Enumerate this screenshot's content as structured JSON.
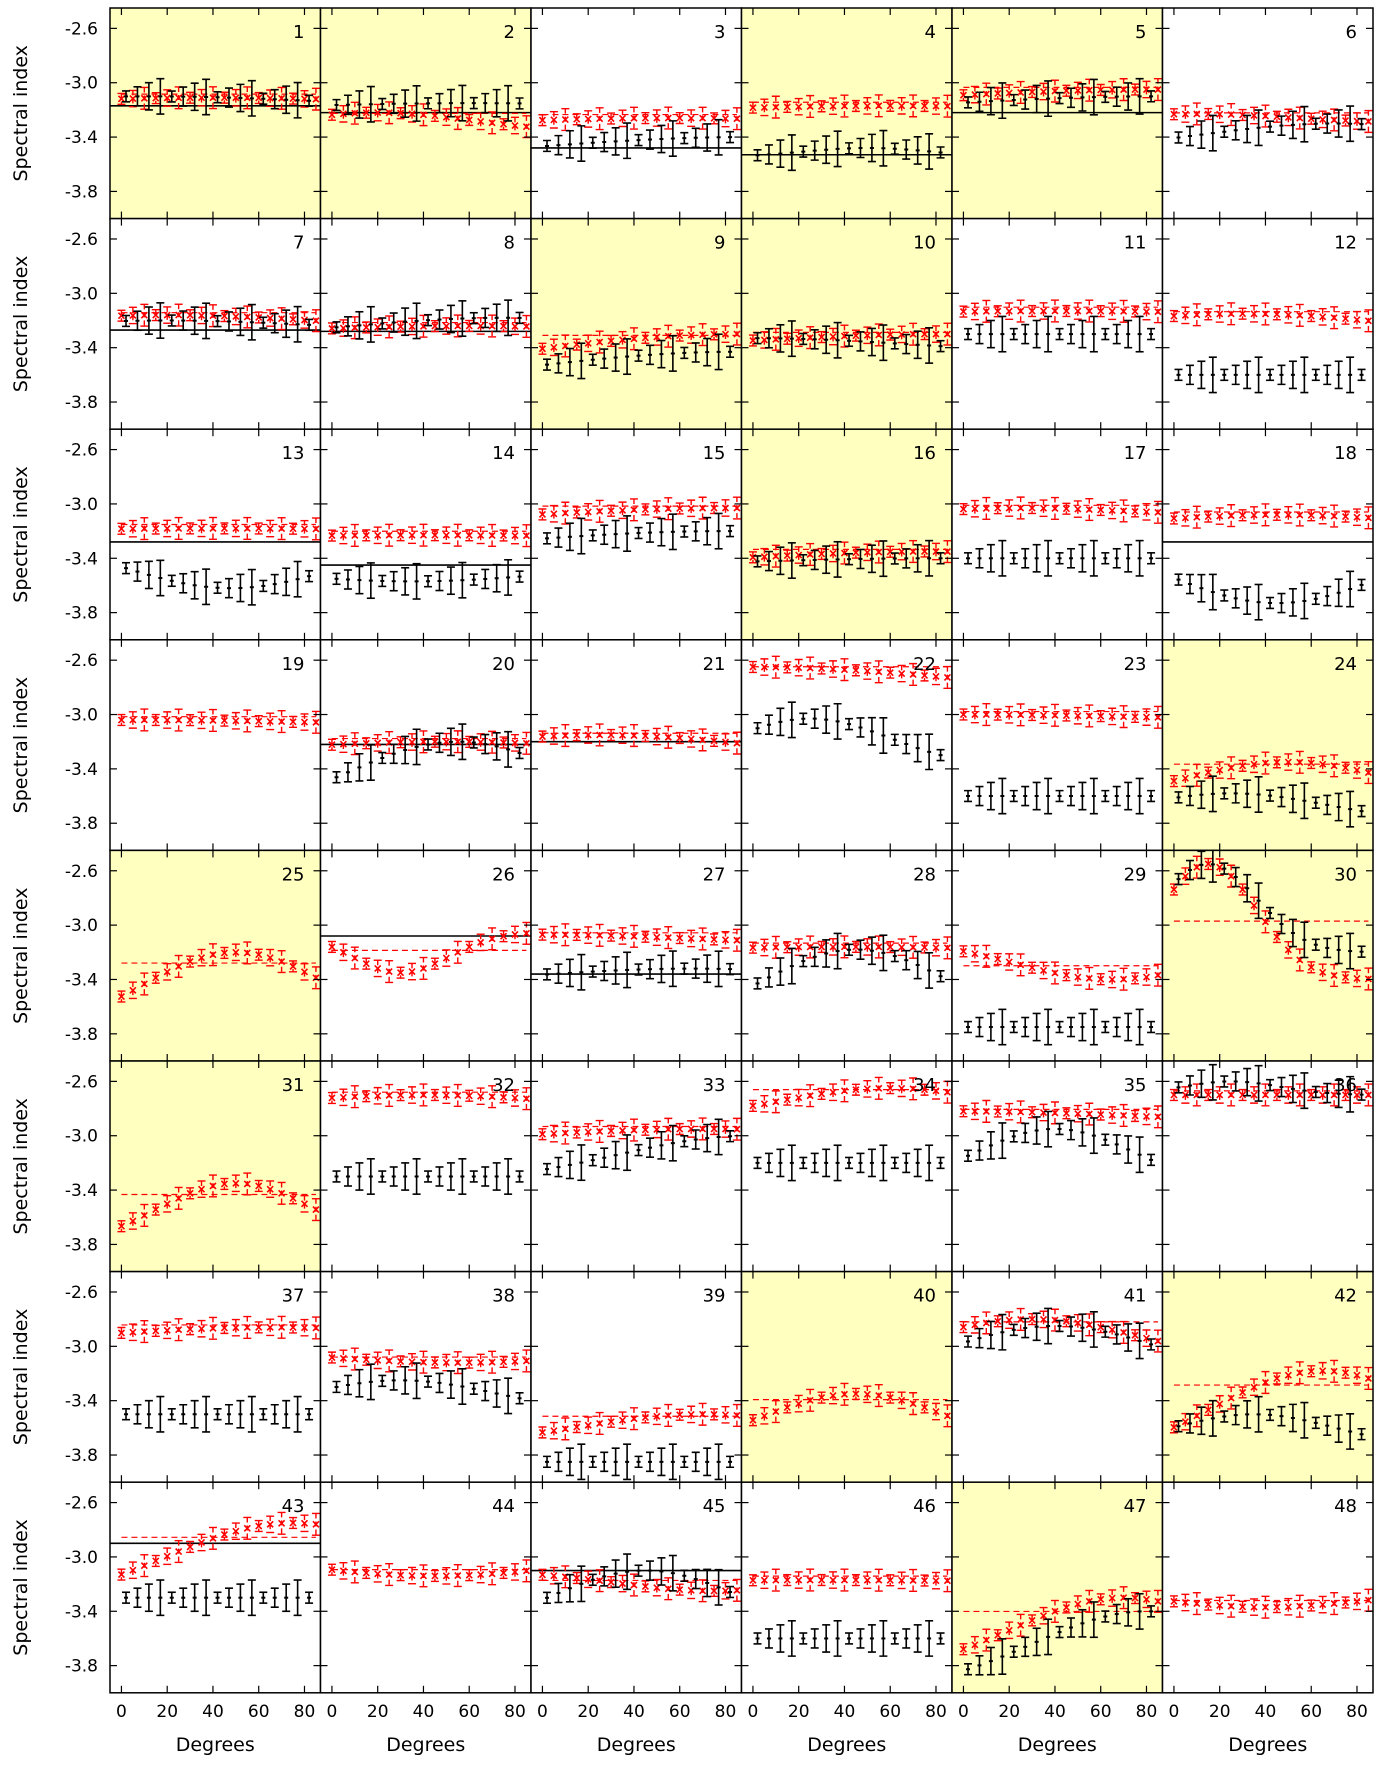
{
  "chart_data": {
    "type": "grid of error-bar line charts",
    "ylabel": "Spectral index",
    "xlabel": "Degrees",
    "xlim": [
      -5,
      87
    ],
    "ylim": [
      -4.0,
      -2.45
    ],
    "x_ticks": [
      0,
      20,
      40,
      60,
      80
    ],
    "x_tick_labels": [
      "0",
      "20",
      "40",
      "60",
      "80"
    ],
    "y_ticks": [
      -2.6,
      -3.0,
      -3.4,
      -3.8
    ],
    "y_tick_labels": [
      "-2.6",
      "-3.0",
      "-3.4",
      "-3.8"
    ],
    "grid": false,
    "colors": {
      "data_series": "#000000",
      "model_series": "#ff0000",
      "highlight_background": "#ffffc0"
    },
    "panels": [
      {
        "label": "1",
        "highlight": true,
        "red": {
          "y0": -3.22,
          "amp": 0.11,
          "c": 40,
          "w": 140
        },
        "black": {
          "y0": -3.24,
          "amp": 0.14,
          "c": 10,
          "w": 140
        },
        "flat": -3.17
      },
      {
        "label": "2",
        "highlight": true,
        "red": {
          "y0": -3.37,
          "amp": 0.15,
          "c": 20,
          "w": 60
        },
        "black": {
          "y0": -3.2,
          "amp": 0.05,
          "c": 60,
          "w": 100
        },
        "flat": -3.22
      },
      {
        "label": "3",
        "red": {
          "y0": -3.37,
          "amp": 0.11,
          "c": 55,
          "w": 140
        },
        "black": {
          "y0": -3.6,
          "amp": 0.2,
          "c": 90,
          "w": 140
        },
        "flat": -3.48
      },
      {
        "label": "4",
        "highlight": true,
        "red": {
          "y0": -3.25,
          "amp": 0.08,
          "c": 60,
          "w": 140
        },
        "black": {
          "y0": -3.55,
          "amp": 0.07,
          "c": 50,
          "w": 40
        },
        "flat": -3.53
      },
      {
        "label": "5",
        "highlight": true,
        "red": {
          "y0": -3.2,
          "amp": 0.15,
          "c": 80,
          "w": 140
        },
        "black": {
          "y0": -3.25,
          "amp": 0.15,
          "c": 85,
          "w": 140
        },
        "flat": -3.22
      },
      {
        "label": "6",
        "red": {
          "y0": -3.3,
          "amp": 0.07,
          "c": 10,
          "w": 60
        },
        "black": {
          "y0": -3.5,
          "amp": 0.2,
          "c": 70,
          "w": 80
        }
      },
      {
        "label": "7",
        "red": {
          "y0": -3.28,
          "amp": 0.12,
          "c": 20,
          "w": 100
        },
        "black": {
          "y0": -3.3,
          "amp": 0.1,
          "c": 20,
          "w": 100
        },
        "flat": -3.27
      },
      {
        "label": "8",
        "red": {
          "y0": -3.3,
          "amp": 0.06,
          "c": 60,
          "w": 100
        },
        "black": {
          "y0": -3.35,
          "amp": 0.17,
          "c": 75,
          "w": 100
        },
        "flat": -3.28
      },
      {
        "label": "9",
        "highlight": true,
        "red": {
          "y0": -3.65,
          "amp": 0.35,
          "c": 85,
          "w": 140
        },
        "black": {
          "y0": -3.75,
          "amp": 0.32,
          "c": 85,
          "w": 140
        }
      },
      {
        "label": "10",
        "highlight": true,
        "red": {
          "y0": -3.4,
          "amp": 0.1,
          "c": 80,
          "w": 100
        },
        "black": {
          "y0": -3.45,
          "amp": 0.12,
          "c": 0,
          "w": 100
        }
      },
      {
        "label": "11",
        "red": {
          "y0": -3.16,
          "amp": 0.03,
          "c": 40,
          "w": 100
        },
        "black": {
          "y0": -3.3,
          "amp": 0.0,
          "c": 40,
          "w": 100
        }
      },
      {
        "label": "12",
        "red": {
          "y0": -3.35,
          "amp": 0.2,
          "c": 30,
          "w": 100
        },
        "black": {
          "y0": -3.6,
          "amp": 0.0,
          "c": 40,
          "w": 100
        }
      },
      {
        "label": "13",
        "red": {
          "y0": -3.2,
          "amp": 0.02,
          "c": 40,
          "w": 100
        },
        "black": {
          "y0": -3.2,
          "amp": -0.42,
          "c": 48,
          "w": 70
        },
        "flat": -3.28
      },
      {
        "label": "14",
        "red": {
          "y0": -3.25,
          "amp": 0.02,
          "c": 40,
          "w": 100
        },
        "black": {
          "y0": -3.45,
          "amp": -0.12,
          "c": 35,
          "w": 80
        },
        "flat": -3.45
      },
      {
        "label": "15",
        "red": {
          "y0": -3.2,
          "amp": 0.17,
          "c": 80,
          "w": 140
        },
        "black": {
          "y0": -3.4,
          "amp": 0.2,
          "c": 80,
          "w": 140
        }
      },
      {
        "label": "16",
        "highlight": true,
        "red": {
          "y0": -3.45,
          "amp": 0.1,
          "c": 75,
          "w": 100
        },
        "black": {
          "y0": -3.45,
          "amp": 0.05,
          "c": 80,
          "w": 100
        }
      },
      {
        "label": "17",
        "red": {
          "y0": -3.08,
          "amp": 0.05,
          "c": 25,
          "w": 60
        },
        "black": {
          "y0": -3.4,
          "amp": 0.0,
          "c": 25,
          "w": 60
        }
      },
      {
        "label": "18",
        "red": {
          "y0": -3.18,
          "amp": 0.1,
          "c": 45,
          "w": 80
        },
        "black": {
          "y0": -3.18,
          "amp": -0.55,
          "c": 45,
          "w": 70
        },
        "flat": -3.28
      },
      {
        "label": "19",
        "red": {
          "y0": -3.08,
          "amp": 0.04,
          "c": 10,
          "w": 100
        }
      },
      {
        "label": "20",
        "red": {
          "y0": -3.3,
          "amp": 0.1,
          "c": 50,
          "w": 100
        },
        "black": {
          "y0": -3.8,
          "amp": 0.6,
          "c": 55,
          "w": 70
        },
        "flat": -3.22
      },
      {
        "label": "21",
        "red": {
          "y0": -3.35,
          "amp": 0.2,
          "c": 25,
          "w": 100
        },
        "flat": -3.2
      },
      {
        "label": "22",
        "red": {
          "y0": -2.9,
          "amp": 0.25,
          "c": 0,
          "w": 140
        },
        "black": {
          "y0": -3.4,
          "amp": 0.37,
          "c": 25,
          "w": 50
        }
      },
      {
        "label": "23",
        "red": {
          "y0": -3.04,
          "amp": 0.04,
          "c": 0,
          "w": 100
        },
        "black": {
          "y0": -3.6,
          "amp": 0.0,
          "c": 30,
          "w": 60
        }
      },
      {
        "label": "24",
        "highlight": true,
        "red": {
          "y0": -3.7,
          "amp": 0.35,
          "c": 50,
          "w": 70
        },
        "black": {
          "y0": -3.8,
          "amp": 0.22,
          "c": 25,
          "w": 60
        }
      },
      {
        "label": "25",
        "highlight": true,
        "red": {
          "y0": -3.85,
          "amp": 0.65,
          "c": 50,
          "w": 60
        }
      },
      {
        "label": "26",
        "red": {
          "y0": -3.05,
          "amp": -0.3,
          "c": 30,
          "w": 30
        },
        "flat": -3.08
      },
      {
        "label": "27",
        "red": {
          "y0": -3.14,
          "amp": 0.07,
          "c": 0,
          "w": 90
        },
        "black": {
          "y0": -3.45,
          "amp": 0.13,
          "c": 65,
          "w": 100
        },
        "flat": -3.36
      },
      {
        "label": "28",
        "red": {
          "y0": -3.2,
          "amp": 0.04,
          "c": 40,
          "w": 100
        },
        "black": {
          "y0": -3.8,
          "amp": 0.62,
          "c": 45,
          "w": 60
        }
      },
      {
        "label": "29",
        "red": {
          "y0": -3.1,
          "amp": -0.3,
          "c": 65,
          "w": 60
        },
        "black": {
          "y0": -3.75,
          "amp": 0.0,
          "c": 40,
          "w": 100
        }
      },
      {
        "label": "30",
        "highlight": true,
        "red": {
          "y0": -3.4,
          "amp": 0.85,
          "c": 15,
          "w": 30
        },
        "black": {
          "y0": -3.2,
          "amp": 0.65,
          "c": 15,
          "w": 30
        }
      },
      {
        "label": "31",
        "highlight": true,
        "red": {
          "y0": -3.85,
          "amp": 0.5,
          "c": 50,
          "w": 50
        }
      },
      {
        "label": "32",
        "red": {
          "y0": -2.85,
          "amp": 0.15,
          "c": 40,
          "w": 100
        },
        "black": {
          "y0": -3.3,
          "amp": 0.0,
          "c": 40,
          "w": 100
        }
      },
      {
        "label": "33",
        "red": {
          "y0": -3.05,
          "amp": 0.1,
          "c": 70,
          "w": 100
        },
        "black": {
          "y0": -3.35,
          "amp": 0.35,
          "c": 90,
          "w": 80
        }
      },
      {
        "label": "34",
        "red": {
          "y0": -2.9,
          "amp": 0.25,
          "c": 60,
          "w": 70
        },
        "black": {
          "y0": -3.2,
          "amp": 0.0,
          "c": 40,
          "w": 100
        }
      },
      {
        "label": "35",
        "red": {
          "y0": -2.9,
          "amp": 0.08,
          "c": 0,
          "w": 100
        },
        "black": {
          "y0": -3.4,
          "amp": 0.45,
          "c": 40,
          "w": 50
        }
      },
      {
        "label": "36",
        "red": {
          "y0": -2.7,
          "amp": 0.0,
          "c": 30,
          "w": 100
        },
        "black": {
          "y0": -2.7,
          "amp": 0.1,
          "c": 25,
          "w": 30
        }
      },
      {
        "label": "37",
        "red": {
          "y0": -2.98,
          "amp": 0.12,
          "c": 65,
          "w": 100
        },
        "black": {
          "y0": -3.5,
          "amp": 0.0,
          "c": 40,
          "w": 100
        }
      },
      {
        "label": "38",
        "red": {
          "y0": -3.0,
          "amp": -0.12,
          "c": 55,
          "w": 90
        },
        "black": {
          "y0": -3.5,
          "amp": 0.25,
          "c": 30,
          "w": 60
        }
      },
      {
        "label": "39",
        "red": {
          "y0": -3.75,
          "amp": 0.25,
          "c": 70,
          "w": 80
        },
        "black": {
          "y0": -3.85,
          "amp": 0.0,
          "c": 65,
          "w": 100
        }
      },
      {
        "label": "40",
        "highlight": true,
        "red": {
          "y0": -3.8,
          "amp": 0.45,
          "c": 45,
          "w": 60
        }
      },
      {
        "label": "41",
        "red": {
          "y0": -3.15,
          "amp": 0.35,
          "c": 30,
          "w": 70
        },
        "black": {
          "y0": -3.3,
          "amp": 0.45,
          "c": 40,
          "w": 70
        }
      },
      {
        "label": "42",
        "highlight": true,
        "red": {
          "y0": -3.9,
          "amp": 0.72,
          "c": 65,
          "w": 70
        },
        "black": {
          "y0": -3.75,
          "amp": 0.25,
          "c": 35,
          "w": 50
        }
      },
      {
        "label": "43",
        "red": {
          "y0": -3.4,
          "amp": 0.65,
          "c": 75,
          "w": 80
        },
        "black": {
          "y0": -3.3,
          "amp": 0.0,
          "c": 40,
          "w": 100
        },
        "flat": -2.9
      },
      {
        "label": "44",
        "red": {
          "y0": -2.97,
          "amp": -0.17,
          "c": 45,
          "w": 80
        }
      },
      {
        "label": "45",
        "red": {
          "y0": -3.1,
          "amp": -0.15,
          "c": 75,
          "w": 60
        },
        "black": {
          "y0": -3.6,
          "amp": 0.5,
          "c": 45,
          "w": 60
        },
        "flat": -3.1
      },
      {
        "label": "46",
        "red": {
          "y0": -3.19,
          "amp": 0.02,
          "c": 30,
          "w": 100
        },
        "black": {
          "y0": -3.6,
          "amp": 0.0,
          "c": 40,
          "w": 100
        }
      },
      {
        "label": "47",
        "highlight": true,
        "red": {
          "y0": -3.9,
          "amp": 0.6,
          "c": 70,
          "w": 70
        },
        "black": {
          "y0": -4.0,
          "amp": 0.6,
          "c": 80,
          "w": 70
        }
      },
      {
        "label": "48",
        "red": {
          "y0": -3.25,
          "amp": -0.12,
          "c": 40,
          "w": 60
        }
      }
    ]
  }
}
